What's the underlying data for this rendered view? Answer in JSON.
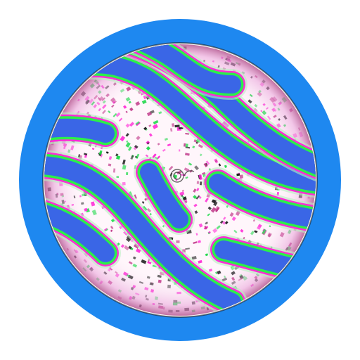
{
  "emblem": {
    "ring_color": "#1e88f0",
    "stripe_fill": "#3a66e6",
    "outline_colors": [
      "#ff2bd6",
      "#2bf04a",
      "#b8f0c0"
    ],
    "speckle_colors": [
      "#ff2bd6",
      "#1fd94a",
      "#1a1a1a",
      "#c13a8a"
    ],
    "interior_bg": "#fff6fb",
    "icon": "wavy-stripe-planet-icon"
  }
}
